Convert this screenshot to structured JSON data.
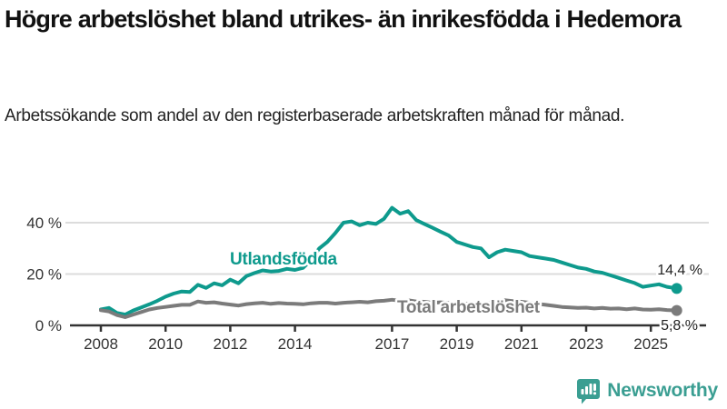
{
  "header": {
    "title": "Högre arbetslöshet bland utrikes- än inrikesfödda i Hedemora",
    "subtitle": "Arbetssökande som andel av den registerbaserade arbetskraften månad för månad."
  },
  "footer": {
    "brand": "Newsworthy"
  },
  "colors": {
    "series_foreign": "#0e9a8d",
    "series_total": "#7b7b7b",
    "axis": "#333333",
    "gridline": "#dcdcdc",
    "value_label": "#222222",
    "brand_teal": "#3a9e92"
  },
  "chart_data": {
    "type": "line",
    "title": "Högre arbetslöshet bland utrikes- än inrikesfödda i Hedemora",
    "subtitle": "Arbetssökande som andel av den registerbaserade arbetskraften månad för månad.",
    "unit": "%",
    "grid": "horizontal",
    "legend_position": "inline-labels",
    "xlim": [
      2007.6,
      2026.3
    ],
    "ylim": [
      0,
      48
    ],
    "y_ticks": [
      {
        "value": 0,
        "label": "0 %"
      },
      {
        "value": 20,
        "label": "20 %"
      },
      {
        "value": 40,
        "label": "40 %"
      }
    ],
    "x_ticks": [
      {
        "value": 2008,
        "label": "2008"
      },
      {
        "value": 2010,
        "label": "2010"
      },
      {
        "value": 2012,
        "label": "2012"
      },
      {
        "value": 2014,
        "label": "2014"
      },
      {
        "value": 2017,
        "label": "2017"
      },
      {
        "value": 2019,
        "label": "2019"
      },
      {
        "value": 2021,
        "label": "2021"
      },
      {
        "value": 2023,
        "label": "2023"
      },
      {
        "value": 2025,
        "label": "2025"
      }
    ],
    "series": [
      {
        "name": "Utlandsfödda",
        "color": "#0e9a8d",
        "end_label": "14,4 %",
        "end_value": 14.4,
        "label_pos": {
          "x": 253,
          "y": 291
        },
        "end_label_pos": {
          "x": 773,
          "y": 302
        },
        "points": [
          [
            2008.0,
            6.2
          ],
          [
            2008.25,
            6.8
          ],
          [
            2008.5,
            4.8
          ],
          [
            2008.75,
            4.2
          ],
          [
            2009.0,
            5.8
          ],
          [
            2009.25,
            7.0
          ],
          [
            2009.5,
            8.2
          ],
          [
            2009.75,
            9.6
          ],
          [
            2010.0,
            11.2
          ],
          [
            2010.25,
            12.4
          ],
          [
            2010.5,
            13.2
          ],
          [
            2010.75,
            13.0
          ],
          [
            2011.0,
            15.8
          ],
          [
            2011.25,
            14.6
          ],
          [
            2011.5,
            16.4
          ],
          [
            2011.75,
            15.6
          ],
          [
            2012.0,
            17.8
          ],
          [
            2012.25,
            16.4
          ],
          [
            2012.5,
            19.2
          ],
          [
            2012.75,
            20.4
          ],
          [
            2013.0,
            21.4
          ],
          [
            2013.25,
            21.0
          ],
          [
            2013.5,
            21.2
          ],
          [
            2013.75,
            22.0
          ],
          [
            2014.0,
            21.6
          ],
          [
            2014.25,
            22.4
          ],
          [
            2014.5,
            25.5
          ],
          [
            2014.75,
            30.0
          ],
          [
            2015.0,
            32.5
          ],
          [
            2015.25,
            36.0
          ],
          [
            2015.5,
            40.0
          ],
          [
            2015.75,
            40.5
          ],
          [
            2016.0,
            39.0
          ],
          [
            2016.25,
            40.0
          ],
          [
            2016.5,
            39.5
          ],
          [
            2016.75,
            41.5
          ],
          [
            2017.0,
            45.8
          ],
          [
            2017.25,
            43.5
          ],
          [
            2017.5,
            44.5
          ],
          [
            2017.75,
            41.0
          ],
          [
            2018.0,
            39.5
          ],
          [
            2018.25,
            38.0
          ],
          [
            2018.5,
            36.5
          ],
          [
            2018.75,
            35.0
          ],
          [
            2019.0,
            32.5
          ],
          [
            2019.25,
            31.5
          ],
          [
            2019.5,
            30.5
          ],
          [
            2019.75,
            30.0
          ],
          [
            2020.0,
            26.5
          ],
          [
            2020.25,
            28.5
          ],
          [
            2020.5,
            29.5
          ],
          [
            2020.75,
            29.0
          ],
          [
            2021.0,
            28.5
          ],
          [
            2021.25,
            27.0
          ],
          [
            2021.5,
            26.5
          ],
          [
            2021.75,
            26.0
          ],
          [
            2022.0,
            25.5
          ],
          [
            2022.25,
            24.5
          ],
          [
            2022.5,
            23.5
          ],
          [
            2022.75,
            22.5
          ],
          [
            2023.0,
            22.0
          ],
          [
            2023.25,
            21.0
          ],
          [
            2023.5,
            20.5
          ],
          [
            2023.75,
            19.5
          ],
          [
            2024.0,
            18.5
          ],
          [
            2024.25,
            17.5
          ],
          [
            2024.5,
            16.5
          ],
          [
            2024.75,
            15.0
          ],
          [
            2025.0,
            15.5
          ],
          [
            2025.25,
            16.0
          ],
          [
            2025.5,
            15.0
          ],
          [
            2025.8,
            14.4
          ]
        ]
      },
      {
        "name": "Total arbetslöshet",
        "color": "#7b7b7b",
        "end_label": "5,8 %",
        "end_value": 5.8,
        "label_pos": {
          "x": 437,
          "y": 344
        },
        "end_label_pos": {
          "x": 768,
          "y": 363
        },
        "points": [
          [
            2008.0,
            5.9
          ],
          [
            2008.25,
            5.4
          ],
          [
            2008.5,
            4.0
          ],
          [
            2008.75,
            3.2
          ],
          [
            2009.0,
            4.2
          ],
          [
            2009.25,
            5.2
          ],
          [
            2009.5,
            6.2
          ],
          [
            2009.75,
            6.8
          ],
          [
            2010.0,
            7.2
          ],
          [
            2010.25,
            7.6
          ],
          [
            2010.5,
            8.0
          ],
          [
            2010.75,
            8.0
          ],
          [
            2011.0,
            9.3
          ],
          [
            2011.25,
            8.8
          ],
          [
            2011.5,
            9.0
          ],
          [
            2011.75,
            8.5
          ],
          [
            2012.0,
            8.1
          ],
          [
            2012.25,
            7.7
          ],
          [
            2012.5,
            8.3
          ],
          [
            2012.75,
            8.6
          ],
          [
            2013.0,
            8.8
          ],
          [
            2013.25,
            8.4
          ],
          [
            2013.5,
            8.7
          ],
          [
            2013.75,
            8.5
          ],
          [
            2014.0,
            8.4
          ],
          [
            2014.25,
            8.2
          ],
          [
            2014.5,
            8.6
          ],
          [
            2014.75,
            8.8
          ],
          [
            2015.0,
            8.8
          ],
          [
            2015.25,
            8.5
          ],
          [
            2015.5,
            8.8
          ],
          [
            2015.75,
            9.0
          ],
          [
            2016.0,
            9.2
          ],
          [
            2016.25,
            9.0
          ],
          [
            2016.5,
            9.4
          ],
          [
            2016.75,
            9.6
          ],
          [
            2017.0,
            10.0
          ],
          [
            2017.25,
            9.6
          ],
          [
            2017.5,
            9.8
          ],
          [
            2017.75,
            9.3
          ],
          [
            2018.0,
            9.2
          ],
          [
            2018.25,
            8.8
          ],
          [
            2018.5,
            9.0
          ],
          [
            2018.75,
            8.7
          ],
          [
            2019.0,
            8.6
          ],
          [
            2019.25,
            8.4
          ],
          [
            2019.5,
            8.6
          ],
          [
            2019.75,
            8.3
          ],
          [
            2020.0,
            8.6
          ],
          [
            2020.25,
            9.7
          ],
          [
            2020.5,
            9.8
          ],
          [
            2020.75,
            9.4
          ],
          [
            2021.0,
            9.2
          ],
          [
            2021.25,
            8.8
          ],
          [
            2021.5,
            8.4
          ],
          [
            2021.75,
            8.0
          ],
          [
            2022.0,
            7.6
          ],
          [
            2022.25,
            7.2
          ],
          [
            2022.5,
            7.0
          ],
          [
            2022.75,
            6.8
          ],
          [
            2023.0,
            6.9
          ],
          [
            2023.25,
            6.6
          ],
          [
            2023.5,
            6.8
          ],
          [
            2023.75,
            6.5
          ],
          [
            2024.0,
            6.6
          ],
          [
            2024.25,
            6.3
          ],
          [
            2024.5,
            6.6
          ],
          [
            2024.75,
            6.2
          ],
          [
            2025.0,
            6.1
          ],
          [
            2025.25,
            6.3
          ],
          [
            2025.5,
            6.0
          ],
          [
            2025.8,
            5.8
          ]
        ]
      }
    ]
  }
}
